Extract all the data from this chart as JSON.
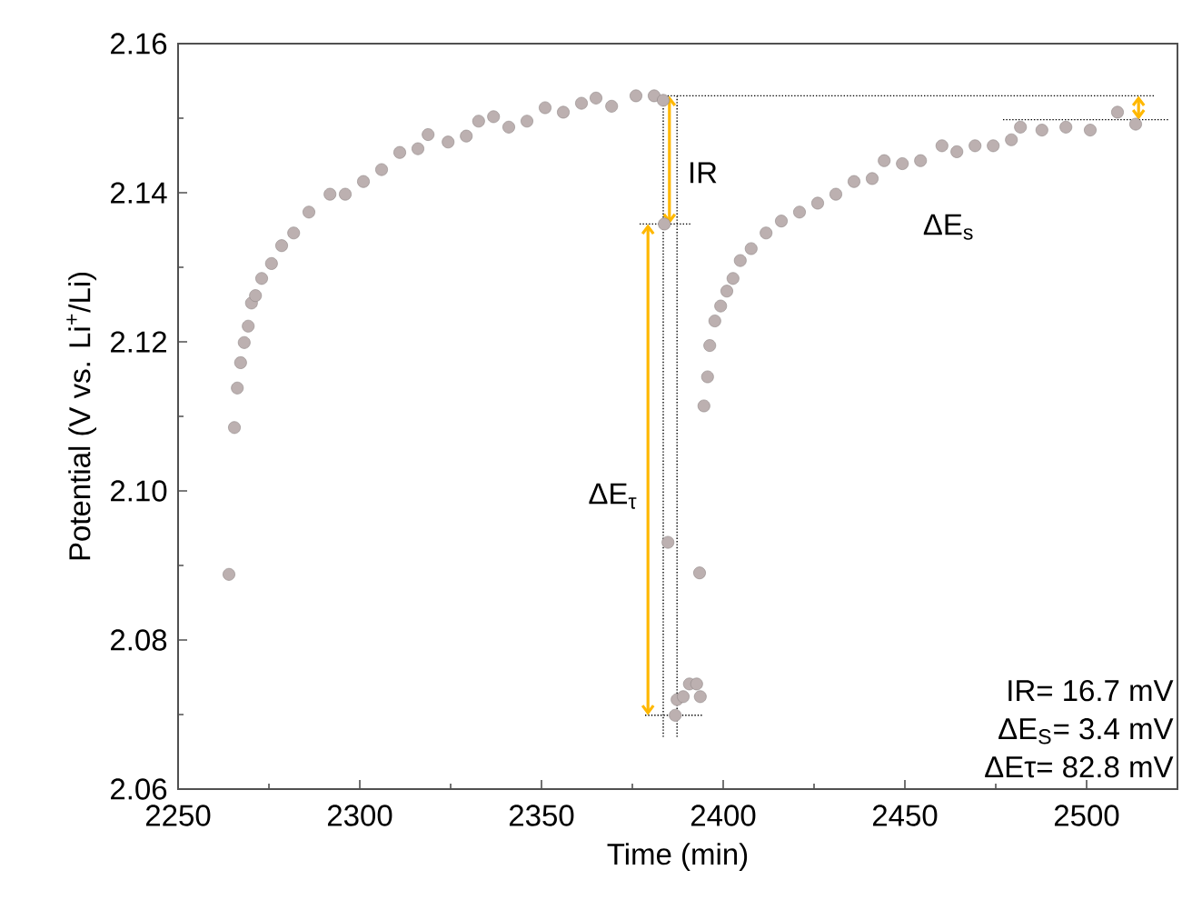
{
  "chart_data": {
    "type": "scatter",
    "xlabel": "Time (min)",
    "ylabel": "Potential (V vs. Li$^{+}$/Li)",
    "xlim": [
      2250,
      2525
    ],
    "xticks": [
      2250,
      2300,
      2350,
      2400,
      2450,
      2500
    ],
    "ylim": [
      2.06,
      2.16
    ],
    "yticks": [
      2.06,
      2.08,
      {
        "value": 2.1,
        "label": "2.10"
      },
      2.12,
      2.14,
      2.16
    ],
    "series": [
      {
        "marker": "circle",
        "color": "#bcb0b0",
        "x": [
          2264,
          2265.5,
          2266.3,
          2267.2,
          2268.2,
          2269.3,
          2270.2,
          2271.3,
          2273,
          2275.7,
          2278.5,
          2281.8,
          2286,
          2291.8,
          2296,
          2301,
          2306,
          2311,
          2316,
          2318.8,
          2324.3,
          2329.3,
          2332.7,
          2336.8,
          2341,
          2346,
          2351,
          2356,
          2361,
          2365,
          2369.3,
          2376,
          2381,
          2383.5,
          2383.8,
          2384.8,
          2386.8,
          2387.3,
          2389,
          2390.7,
          2392.7,
          2393.7,
          2393.5,
          2394.7,
          2395.7,
          2396.3,
          2397.7,
          2399.3,
          2401,
          2402.7,
          2404.7,
          2407.7,
          2411.8,
          2416,
          2421,
          2426,
          2431,
          2436,
          2441,
          2444.3,
          2449.3,
          2454.3,
          2460.2,
          2464.3,
          2469.3,
          2474.3,
          2479.3,
          2481.8,
          2487.7,
          2494.3,
          2501,
          2508.5,
          2513.5
        ],
        "values": [
          2.0888,
          2.1085,
          2.1138,
          2.1172,
          2.1199,
          2.1221,
          2.1252,
          2.1262,
          2.1285,
          2.1305,
          2.1329,
          2.1346,
          2.1374,
          2.1398,
          2.1398,
          2.1415,
          2.1431,
          2.1454,
          2.1459,
          2.1478,
          2.1468,
          2.1476,
          2.1496,
          2.1502,
          2.1488,
          2.1496,
          2.1514,
          2.1508,
          2.152,
          2.1527,
          2.1516,
          2.153,
          2.153,
          2.1524,
          2.1358,
          2.0931,
          2.0699,
          2.072,
          2.0724,
          2.0741,
          2.0741,
          2.0724,
          2.089,
          2.1114,
          2.1153,
          2.1195,
          2.1228,
          2.1248,
          2.1268,
          2.1285,
          2.1309,
          2.1325,
          2.1346,
          2.1362,
          2.1374,
          2.1386,
          2.1398,
          2.1415,
          2.1419,
          2.1443,
          2.1439,
          2.1443,
          2.1463,
          2.1455,
          2.1463,
          2.1463,
          2.1471,
          2.1488,
          2.1484,
          2.1488,
          2.1484,
          2.1508,
          2.1492
        ]
      },
      {
        "type": "line",
        "color": "#000000",
        "line_style": "dotted",
        "x": [
          2383,
          2518.5
        ],
        "values": [
          2.153,
          2.153
        ]
      },
      {
        "type": "line",
        "color": "#000000",
        "line_style": "dotted",
        "x": [
          2377,
          2391
        ],
        "values": [
          2.1358,
          2.1358
        ]
      },
      {
        "type": "line",
        "color": "#000000",
        "line_style": "dotted",
        "x": [
          2378.5,
          2394.5
        ],
        "values": [
          2.0699,
          2.0699
        ]
      },
      {
        "type": "line",
        "color": "#000000",
        "line_style": "dotted",
        "x": [
          2477,
          2522.5
        ],
        "values": [
          2.1498,
          2.1498
        ]
      },
      {
        "type": "line",
        "color": "#000000",
        "line_style": "dotted",
        "x": [
          2383.5,
          2383.5
        ],
        "values": [
          2.153,
          2.0668
        ]
      },
      {
        "type": "line",
        "color": "#000000",
        "line_style": "dotted",
        "x": [
          2387.3,
          2387.3
        ],
        "values": [
          2.153,
          2.0668
        ]
      },
      {
        "type": "line",
        "color": "#ffb800",
        "line_style": "solid",
        "x": [
          2385.2,
          2385.2
        ],
        "values": [
          2.153,
          2.1358
        ]
      },
      {
        "type": "line",
        "color": "#ffb800",
        "line_style": "solid",
        "x": [
          2379.3,
          2379.3
        ],
        "values": [
          2.1358,
          2.0699
        ]
      },
      {
        "type": "line",
        "color": "#ffb800",
        "line_style": "solid",
        "x": [
          2514.3,
          2514.3
        ],
        "values": [
          2.153,
          2.1498
        ]
      }
    ],
    "annotations": [
      "IR",
      "ΔE$_{τ}$",
      "ΔE$_{s}$",
      "IR= 16.7 mV",
      "ΔE$_{S}$= 3.4 mV",
      "ΔEτ= 82.8 mV"
    ]
  }
}
